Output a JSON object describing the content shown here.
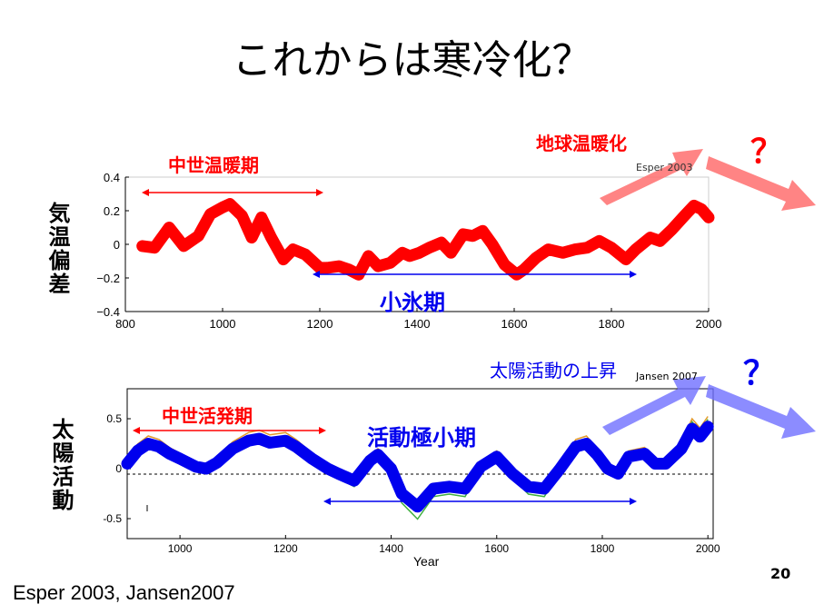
{
  "title": "これからは寒冷化？",
  "citation": "Esper 2003, Jansen2007",
  "page_number": "20",
  "top_chart": {
    "ylabel": "気温偏差",
    "period_warm": "中世温暖期",
    "period_cold": "小氷期",
    "future_label": "地球温暖化",
    "source_note": "Esper 2003",
    "question_mark": "？"
  },
  "bottom_chart": {
    "ylabel": "太陽活動",
    "period_active": "中世活発期",
    "period_min": "活動極小期",
    "future_label": "太陽活動の上昇",
    "source_note": "Jansen 2007",
    "question_mark": "？",
    "xlabel": "Year"
  },
  "colors": {
    "temperature": "#ff0000",
    "solar": "#0000ee",
    "warm_arrow": "#ff6f6f",
    "cool_arrow": "#6f6fff",
    "span_red": "#ff0000",
    "span_blue": "#0000ee"
  },
  "chart_data": [
    {
      "type": "line",
      "title": "",
      "xlabel": "",
      "ylabel": "気温偏差",
      "xlim": [
        800,
        2000
      ],
      "ylim": [
        -0.4,
        0.4
      ],
      "xticks": [
        800,
        1000,
        1200,
        1400,
        1600,
        1800,
        2000
      ],
      "yticks": [
        0.4,
        0.2,
        0,
        -0.2,
        -0.4
      ],
      "ytick_labels": [
        "0.4",
        "0.2",
        "0",
        "−0.2",
        "−0.4"
      ],
      "series": [
        {
          "x": [
            835,
            860,
            890,
            920,
            950,
            975,
            1000,
            1015,
            1040,
            1060,
            1080,
            1100,
            1125,
            1145,
            1170,
            1200,
            1215,
            1240,
            1260,
            1280,
            1300,
            1320,
            1345,
            1370,
            1385,
            1405,
            1425,
            1450,
            1470,
            1495,
            1515,
            1535,
            1555,
            1580,
            1605,
            1620,
            1645,
            1670,
            1700,
            1725,
            1750,
            1775,
            1800,
            1830,
            1850,
            1880,
            1900,
            1925,
            1950,
            1970,
            1985,
            2000
          ],
          "y": [
            -0.01,
            -0.02,
            0.1,
            -0.01,
            0.05,
            0.18,
            0.22,
            0.24,
            0.17,
            0.04,
            0.16,
            0.04,
            -0.09,
            -0.03,
            -0.06,
            -0.14,
            -0.14,
            -0.13,
            -0.15,
            -0.18,
            -0.07,
            -0.13,
            -0.11,
            -0.05,
            -0.07,
            -0.05,
            -0.02,
            0.01,
            -0.05,
            0.06,
            0.05,
            0.08,
            0.0,
            -0.12,
            -0.18,
            -0.15,
            -0.08,
            -0.03,
            -0.05,
            -0.03,
            -0.02,
            0.02,
            -0.02,
            -0.09,
            -0.03,
            0.04,
            0.02,
            0.09,
            0.17,
            0.23,
            0.21,
            0.16
          ]
        }
      ]
    },
    {
      "type": "line",
      "title": "",
      "xlabel": "Year",
      "ylabel": "太陽活動",
      "xlim": [
        900,
        2010
      ],
      "ylim": [
        -0.7,
        0.8
      ],
      "xticks": [
        1000,
        1200,
        1400,
        1600,
        1800,
        2000
      ],
      "yticks": [
        0.5,
        0,
        -0.5
      ],
      "ytick_labels": [
        "0.5",
        "0",
        "-0.5"
      ],
      "series": [
        {
          "x": [
            900,
            920,
            940,
            960,
            980,
            1000,
            1030,
            1050,
            1070,
            1100,
            1130,
            1150,
            1170,
            1200,
            1220,
            1250,
            1280,
            1300,
            1330,
            1360,
            1375,
            1400,
            1420,
            1450,
            1480,
            1510,
            1540,
            1570,
            1600,
            1630,
            1660,
            1690,
            1720,
            1750,
            1770,
            1790,
            1810,
            1830,
            1850,
            1880,
            1900,
            1920,
            1950,
            1970,
            1985,
            2000
          ],
          "y": [
            0.05,
            0.18,
            0.25,
            0.22,
            0.15,
            0.1,
            0.02,
            0.0,
            0.06,
            0.2,
            0.28,
            0.3,
            0.26,
            0.28,
            0.22,
            0.1,
            0.0,
            -0.05,
            -0.12,
            0.08,
            0.14,
            0.0,
            -0.25,
            -0.38,
            -0.2,
            -0.18,
            -0.2,
            0.02,
            0.12,
            -0.05,
            -0.18,
            -0.2,
            0.0,
            0.22,
            0.25,
            0.14,
            0.0,
            -0.05,
            0.12,
            0.15,
            0.05,
            0.05,
            0.2,
            0.4,
            0.32,
            0.42
          ]
        }
      ]
    }
  ]
}
